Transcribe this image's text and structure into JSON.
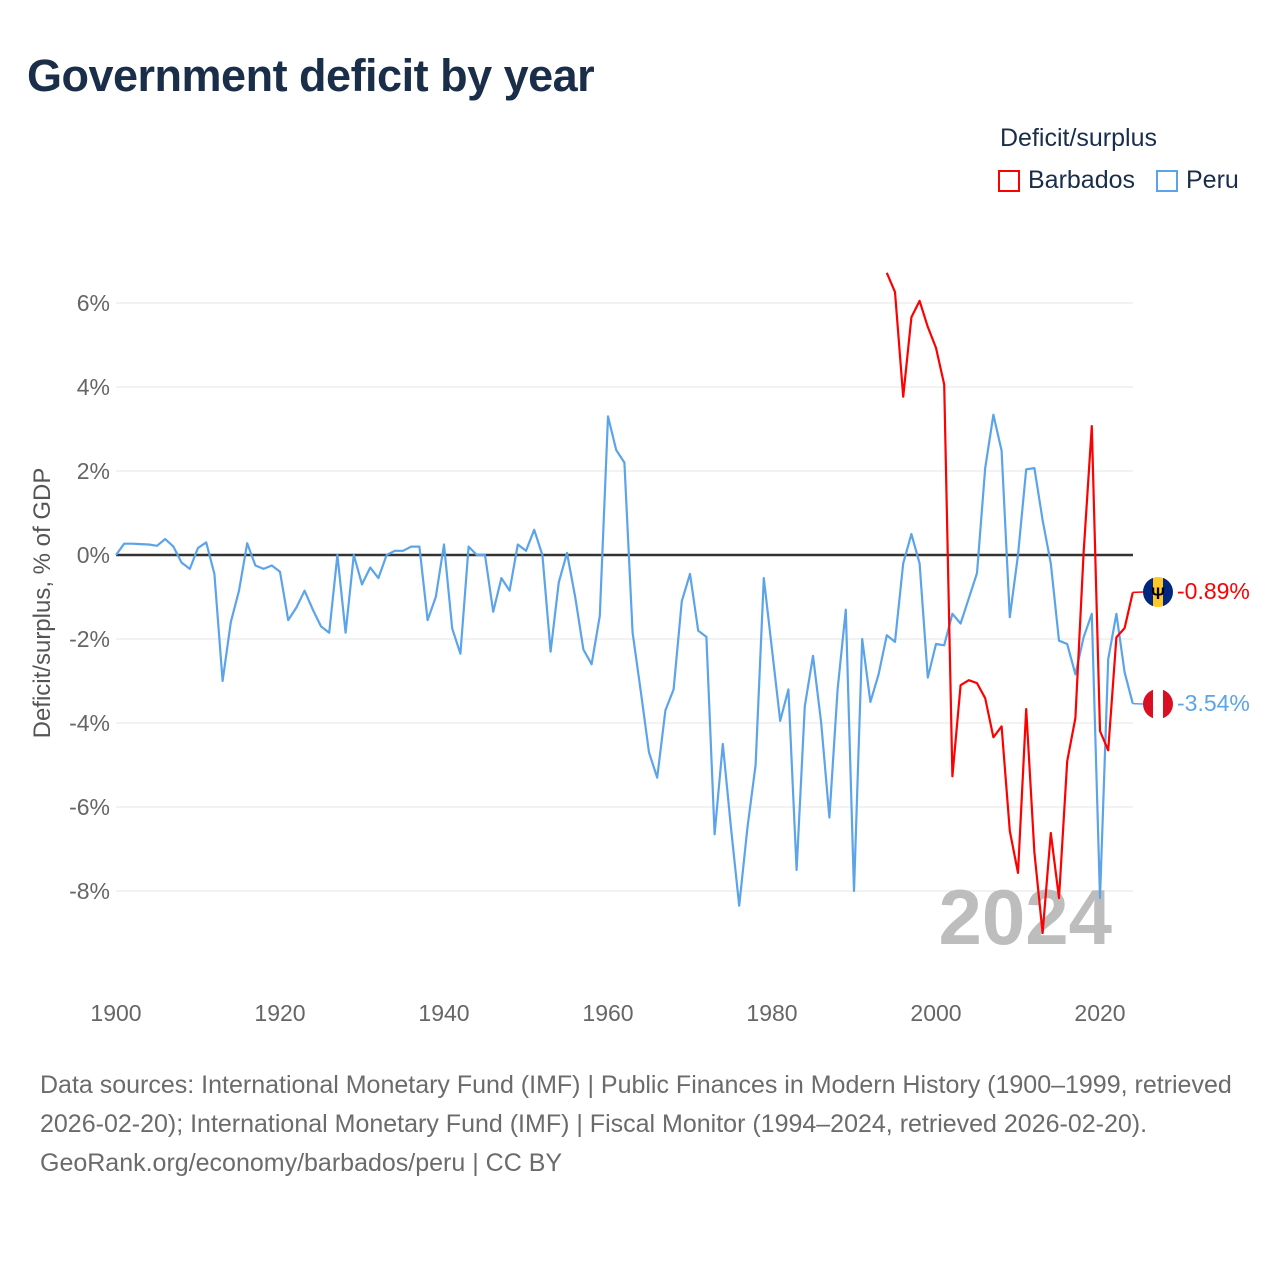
{
  "title": "Government deficit by year",
  "legend": {
    "title": "Deficit/surplus",
    "items": [
      {
        "label": "Barbados",
        "color": "#ff0000"
      },
      {
        "label": "Peru",
        "color": "#5ba4ea"
      }
    ]
  },
  "watermark": "2024",
  "footer": {
    "sources": "Data sources: International Monetary Fund (IMF) | Public Finances in Modern History (1900–1999, retrieved 2026-02-20); International Monetary Fund (IMF) | Fiscal Monitor (1994–2024, retrieved 2026-02-20).",
    "link": "GeoRank.org/economy/barbados/peru | CC BY"
  },
  "chart_data": {
    "type": "line",
    "title": "Government deficit by year",
    "xlabel": "",
    "ylabel": "Deficit/surplus, % of GDP",
    "xlim": [
      1900,
      2024
    ],
    "ylim": [
      -10,
      7
    ],
    "x_ticks": [
      1900,
      1920,
      1940,
      1960,
      1980,
      2000,
      2020
    ],
    "x_tick_labels": [
      "1900",
      "1920",
      "1940",
      "1960",
      "1980",
      "2000",
      "2020"
    ],
    "y_ticks": [
      6,
      4,
      2,
      0,
      -2,
      -4,
      -6,
      -8
    ],
    "y_tick_labels": [
      "6%",
      "4%",
      "2%",
      "0%",
      "-2%",
      "-4%",
      "-6%",
      "-8%"
    ],
    "grid": true,
    "legend_position": "top-right",
    "series": [
      {
        "name": "Peru",
        "color": "#5ba4ea",
        "end_label": "-3.54%",
        "start_year": 1900,
        "values": [
          0,
          0.27,
          0.27,
          0.26,
          0.25,
          0.22,
          0.38,
          0.2,
          -0.18,
          -0.33,
          0.17,
          0.3,
          -0.45,
          -3.0,
          -1.6,
          -0.85,
          0.28,
          -0.25,
          -0.33,
          -0.25,
          -0.4,
          -1.55,
          -1.25,
          -0.85,
          -1.3,
          -1.7,
          -1.85,
          0,
          -1.85,
          0,
          -0.7,
          -0.3,
          -0.55,
          0,
          0.1,
          0.1,
          0.2,
          0.2,
          -1.55,
          -1.0,
          0.25,
          -1.75,
          -2.35,
          0.2,
          0,
          0,
          -1.35,
          -0.55,
          -0.85,
          0.25,
          0.1,
          0.6,
          0,
          -2.3,
          -0.65,
          0.05,
          -1.0,
          -2.25,
          -2.6,
          -1.45,
          3.3,
          2.5,
          2.2,
          -1.85,
          -3.25,
          -4.7,
          -5.3,
          -3.7,
          -3.2,
          -1.1,
          -0.45,
          -1.8,
          -1.95,
          -6.65,
          -4.5,
          -6.5,
          -8.35,
          -6.5,
          -5.0,
          -0.55,
          -2.25,
          -3.95,
          -3.2,
          -7.5,
          -3.6,
          -2.4,
          -4.0,
          -6.25,
          -3.2,
          -1.3,
          -8.0,
          -2.0,
          -3.5,
          -2.84,
          -1.91,
          -2.07,
          -0.2,
          0.5,
          -0.2,
          -2.92,
          -2.12,
          -2.15,
          -1.4,
          -1.63,
          -1.03,
          -0.43,
          2.07,
          3.34,
          2.48,
          -1.48,
          0,
          2.04,
          2.07,
          0.83,
          -0.2,
          -2.04,
          -2.12,
          -2.84,
          -1.96,
          -1.4,
          -8.17,
          -2.48,
          -1.4,
          -2.79,
          -3.54
        ]
      },
      {
        "name": "Barbados",
        "color": "#ff0000",
        "end_label": "-0.89%",
        "start_year": 1994,
        "values": [
          6.72,
          6.26,
          3.77,
          5.66,
          6.05,
          5.43,
          4.93,
          4.06,
          -5.27,
          -3.1,
          -2.98,
          -3.05,
          -3.41,
          -4.34,
          -4.08,
          -6.57,
          -7.57,
          -3.67,
          -7.08,
          -9.0,
          -6.62,
          -8.17,
          -4.91,
          -3.88,
          0.05,
          3.07,
          -4.19,
          -4.65,
          -1.96,
          -1.74,
          -0.89
        ]
      }
    ]
  }
}
